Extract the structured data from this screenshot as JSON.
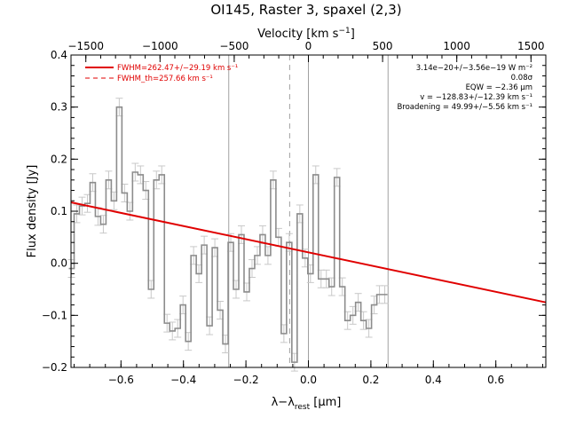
{
  "chart_data": {
    "type": "line",
    "title": "OI145, Raster 3, spaxel (2,3)",
    "xlabel": "λ−λ",
    "xlabel_sub": "rest",
    "xlabel_unit": " [μm]",
    "ylabel": "Flux density [Jy]",
    "top_axis_label": "Velocity [km s",
    "top_axis_label_sup": "−1",
    "top_axis_label_end": "]",
    "xlim": [
      -0.76,
      0.76
    ],
    "ylim": [
      -0.2,
      0.4
    ],
    "velocity_lim": [
      -1600,
      1600
    ],
    "x_ticks": [
      -0.6,
      -0.4,
      -0.2,
      0.0,
      0.2,
      0.4,
      0.6
    ],
    "x_tick_labels": [
      "−0.6",
      "−0.4",
      "−0.2",
      "0.0",
      "0.2",
      "0.4",
      "0.6"
    ],
    "y_ticks": [
      -0.2,
      -0.1,
      0.0,
      0.1,
      0.2,
      0.3,
      0.4
    ],
    "y_tick_labels": [
      "−0.2",
      "−0.1",
      "0.0",
      "0.1",
      "0.2",
      "0.3",
      "0.4"
    ],
    "top_ticks": [
      -1500,
      -1000,
      -500,
      0,
      500,
      1000,
      1500
    ],
    "top_tick_labels": [
      "−1500",
      "−1000",
      "−500",
      "0",
      "500",
      "1000",
      "1500"
    ],
    "vertical_lines": [
      -0.255,
      0.0,
      0.255
    ],
    "dashed_line": -0.06,
    "fit_line": {
      "x": [
        -0.76,
        0.76
      ],
      "y": [
        0.117,
        -0.075
      ]
    },
    "series": [
      {
        "values": [
          [
            -0.7585,
            -0.01
          ],
          [
            -0.7415,
            0.095
          ],
          [
            -0.7245,
            0.11
          ],
          [
            -0.7075,
            0.115
          ],
          [
            -0.6905,
            0.155
          ],
          [
            -0.6735,
            0.09
          ],
          [
            -0.6565,
            0.075
          ],
          [
            -0.6395,
            0.16
          ],
          [
            -0.6225,
            0.12
          ],
          [
            -0.6055,
            0.3
          ],
          [
            -0.5885,
            0.135
          ],
          [
            -0.5715,
            0.1
          ],
          [
            -0.5545,
            0.175
          ],
          [
            -0.5375,
            0.17
          ],
          [
            -0.5205,
            0.14
          ],
          [
            -0.5035,
            -0.05
          ],
          [
            -0.4865,
            0.16
          ],
          [
            -0.4695,
            0.17
          ],
          [
            -0.4525,
            -0.115
          ],
          [
            -0.4355,
            -0.13
          ],
          [
            -0.4185,
            -0.125
          ],
          [
            -0.4015,
            -0.08
          ],
          [
            -0.3845,
            -0.15
          ],
          [
            -0.3675,
            0.015
          ],
          [
            -0.3505,
            -0.02
          ],
          [
            -0.3335,
            0.035
          ],
          [
            -0.3165,
            -0.12
          ],
          [
            -0.2995,
            0.03
          ],
          [
            -0.2825,
            -0.09
          ],
          [
            -0.2655,
            -0.155
          ],
          [
            -0.2485,
            0.04
          ],
          [
            -0.2315,
            -0.05
          ],
          [
            -0.2145,
            0.055
          ],
          [
            -0.1975,
            -0.055
          ],
          [
            -0.1805,
            -0.01
          ],
          [
            -0.1635,
            0.015
          ],
          [
            -0.1465,
            0.055
          ],
          [
            -0.1295,
            0.015
          ],
          [
            -0.1125,
            0.16
          ],
          [
            -0.0955,
            0.05
          ],
          [
            -0.0785,
            -0.135
          ],
          [
            -0.0615,
            0.04
          ],
          [
            -0.0445,
            -0.19
          ],
          [
            -0.0275,
            0.095
          ],
          [
            -0.0105,
            0.01
          ],
          [
            0.0065,
            -0.02
          ],
          [
            0.0235,
            0.17
          ],
          [
            0.0405,
            -0.03
          ],
          [
            0.0575,
            -0.03
          ],
          [
            0.0745,
            -0.045
          ],
          [
            0.0915,
            0.165
          ],
          [
            0.1085,
            -0.045
          ],
          [
            0.1255,
            -0.11
          ],
          [
            0.1425,
            -0.1
          ],
          [
            0.1595,
            -0.075
          ],
          [
            0.1765,
            -0.11
          ],
          [
            0.1935,
            -0.125
          ],
          [
            0.2105,
            -0.08
          ],
          [
            0.2275,
            -0.06
          ],
          [
            0.2445,
            -0.06
          ]
        ]
      }
    ],
    "legend": {
      "placement": "top-left",
      "entries": [
        {
          "label": "FWHM=262.47+/−29.19 km s⁻¹",
          "style": "solid"
        },
        {
          "label": "FWHM_th=257.66 km s⁻¹",
          "style": "dashed"
        }
      ]
    },
    "annotations": [
      "3.14e−20+/−3.56e−19 W m⁻²",
      "0.08σ",
      "EQW = −2.36 μm",
      "v = −128.83+/−12.39 km s⁻¹",
      "Broadening = 49.99+/−5.56 km s⁻¹"
    ],
    "colors": {
      "data": "#8c8c8c",
      "error": "#c8c8c8",
      "fit": "#e00000",
      "vline": "#a0a0a0"
    }
  }
}
